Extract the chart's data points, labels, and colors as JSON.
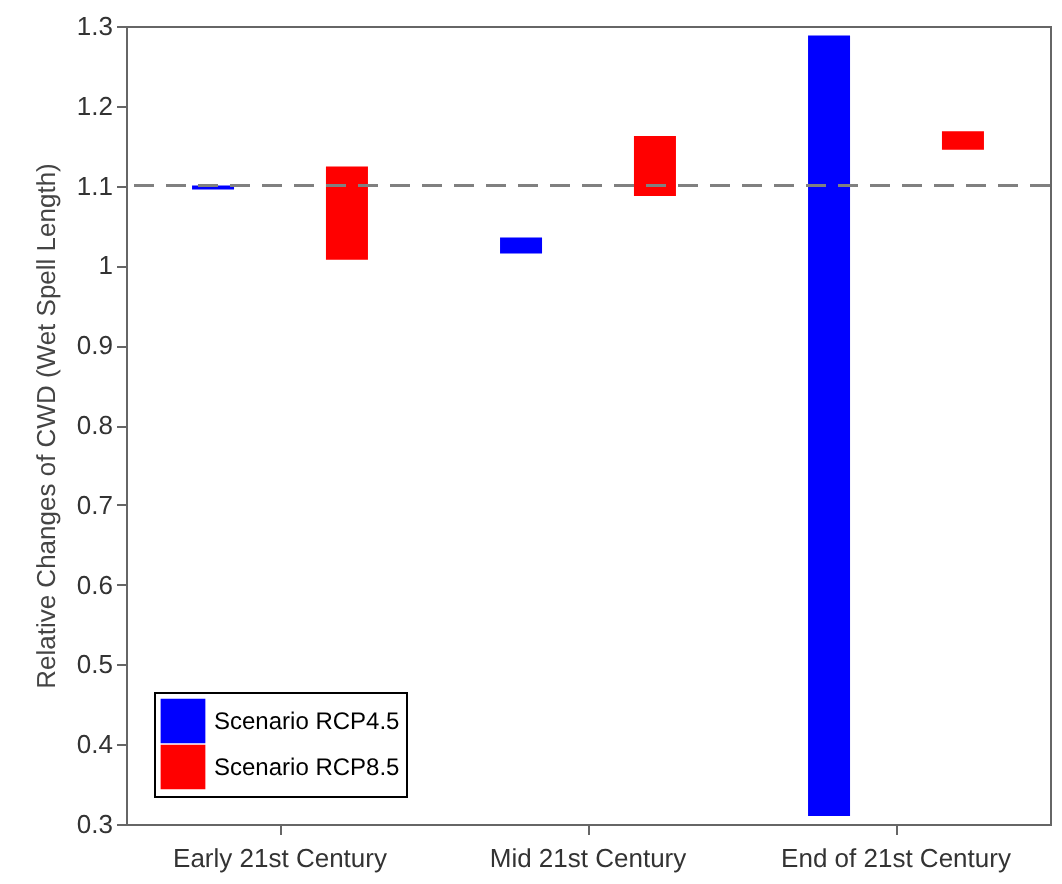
{
  "chart_data": {
    "type": "bar",
    "ylabel": "Relative Changes of CWD (Wet Spell Length)",
    "categories": [
      "Early 21st Century",
      "Mid 21st Century",
      "End of 21st Century"
    ],
    "series": [
      {
        "name": "Scenario RCP4.5",
        "color": "#0000ff",
        "base": [
          1.095,
          1.015,
          0.31
        ],
        "values": [
          0.005,
          0.02,
          0.978
        ]
      },
      {
        "name": "Scenario RCP8.5",
        "color": "#ff0000",
        "base": [
          1.007,
          1.087,
          1.145
        ],
        "values": [
          0.117,
          0.075,
          0.023
        ]
      }
    ],
    "ylim": [
      0.3,
      1.3
    ],
    "yticks": [
      0.3,
      0.4,
      0.5,
      0.6,
      0.7,
      0.8,
      0.9,
      1,
      1.1,
      1.2,
      1.3
    ],
    "ref_lines": [
      {
        "axis": "y",
        "value": 1.1,
        "color": "#808080",
        "line_style": "dashed"
      }
    ],
    "grid": false,
    "legend": "bottom left"
  }
}
